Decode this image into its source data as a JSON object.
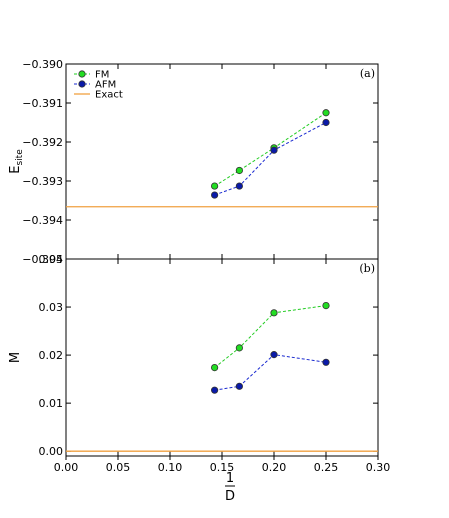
{
  "chart_data": [
    {
      "type": "line",
      "panel_tag": "(a)",
      "ylabel": "E",
      "ylabel_sub": "site",
      "ylim": [
        -0.395,
        -0.39
      ],
      "yticks": [
        -0.395,
        -0.394,
        -0.393,
        -0.392,
        -0.391,
        -0.39
      ],
      "ytick_labels": [
        "−0.395",
        "−0.394",
        "−0.393",
        "−0.392",
        "−0.391",
        "−0.390"
      ],
      "xlim": [
        0.0,
        0.3
      ],
      "legend": "top-left",
      "series": [
        {
          "name": "FM",
          "color": "#22cc22",
          "marker_fill": "#22dd22",
          "style": "dashed-marker",
          "x": [
            0.1429,
            0.1667,
            0.2,
            0.25
          ],
          "y": [
            -0.39313,
            -0.39273,
            -0.39215,
            -0.39125
          ]
        },
        {
          "name": "AFM",
          "color": "#1a2ad0",
          "marker_fill": "#0a1aa8",
          "style": "dashed-marker",
          "x": [
            0.1429,
            0.1667,
            0.2,
            0.25
          ],
          "y": [
            -0.39336,
            -0.39313,
            -0.39221,
            -0.3915
          ]
        },
        {
          "name": "Exact",
          "color": "#f0a040",
          "style": "solid",
          "x": [
            0.0,
            0.3
          ],
          "y": [
            -0.39366,
            -0.39366
          ]
        }
      ]
    },
    {
      "type": "line",
      "panel_tag": "(b)",
      "ylabel": "M",
      "xlabel_num": "1",
      "xlabel_den": "D",
      "ylim": [
        -0.001,
        0.04
      ],
      "yticks": [
        0.0,
        0.01,
        0.02,
        0.03,
        0.04
      ],
      "ytick_labels": [
        "0.00",
        "0.01",
        "0.02",
        "0.03",
        "0.04"
      ],
      "xlim": [
        0.0,
        0.3
      ],
      "xticks": [
        0.0,
        0.05,
        0.1,
        0.15,
        0.2,
        0.25,
        0.3
      ],
      "xtick_labels": [
        "0.00",
        "0.05",
        "0.10",
        "0.15",
        "0.20",
        "0.25",
        "0.30"
      ],
      "series": [
        {
          "name": "FM",
          "color": "#22cc22",
          "marker_fill": "#22dd22",
          "style": "dashed-marker",
          "x": [
            0.1429,
            0.1667,
            0.2,
            0.25
          ],
          "y": [
            0.0174,
            0.0215,
            0.0288,
            0.0303
          ]
        },
        {
          "name": "AFM",
          "color": "#1a2ad0",
          "marker_fill": "#0a1aa8",
          "style": "dashed-marker",
          "x": [
            0.1429,
            0.1667,
            0.2,
            0.25
          ],
          "y": [
            0.0127,
            0.0135,
            0.0201,
            0.0185
          ]
        },
        {
          "name": "Exact",
          "color": "#f0a040",
          "style": "solid",
          "x": [
            0.0,
            0.3
          ],
          "y": [
            0.0,
            0.0
          ]
        }
      ]
    }
  ]
}
